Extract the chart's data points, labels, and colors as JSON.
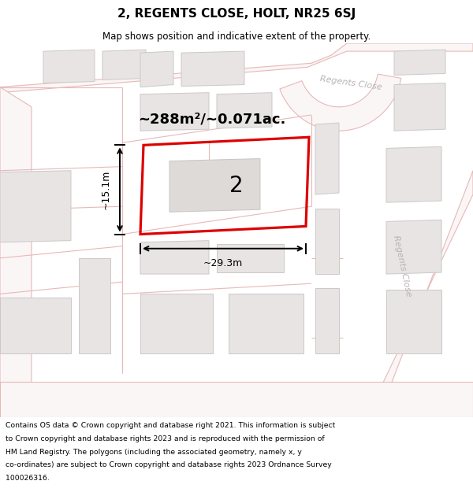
{
  "title": "2, REGENTS CLOSE, HOLT, NR25 6SJ",
  "subtitle": "Map shows position and indicative extent of the property.",
  "area_text": "~288m²/~0.071ac.",
  "dim_width": "~29.3m",
  "dim_height": "~15.1m",
  "property_number": "2",
  "footer_lines": [
    "Contains OS data © Crown copyright and database right 2021. This information is subject",
    "to Crown copyright and database rights 2023 and is reproduced with the permission of",
    "HM Land Registry. The polygons (including the associated geometry, namely x, y",
    "co-ordinates) are subject to Crown copyright and database rights 2023 Ordnance Survey",
    "100026316."
  ],
  "map_bg": "#faf8f8",
  "road_fill": "#f9f0f0",
  "road_line": "#e8b8b8",
  "road_line2": "#d0a0a0",
  "building_fill": "#e8e4e4",
  "building_outline": "#ccc8c8",
  "plot_edge": "#dd0000",
  "street_color": "#b8b4b4",
  "white": "#ffffff",
  "black": "#000000"
}
